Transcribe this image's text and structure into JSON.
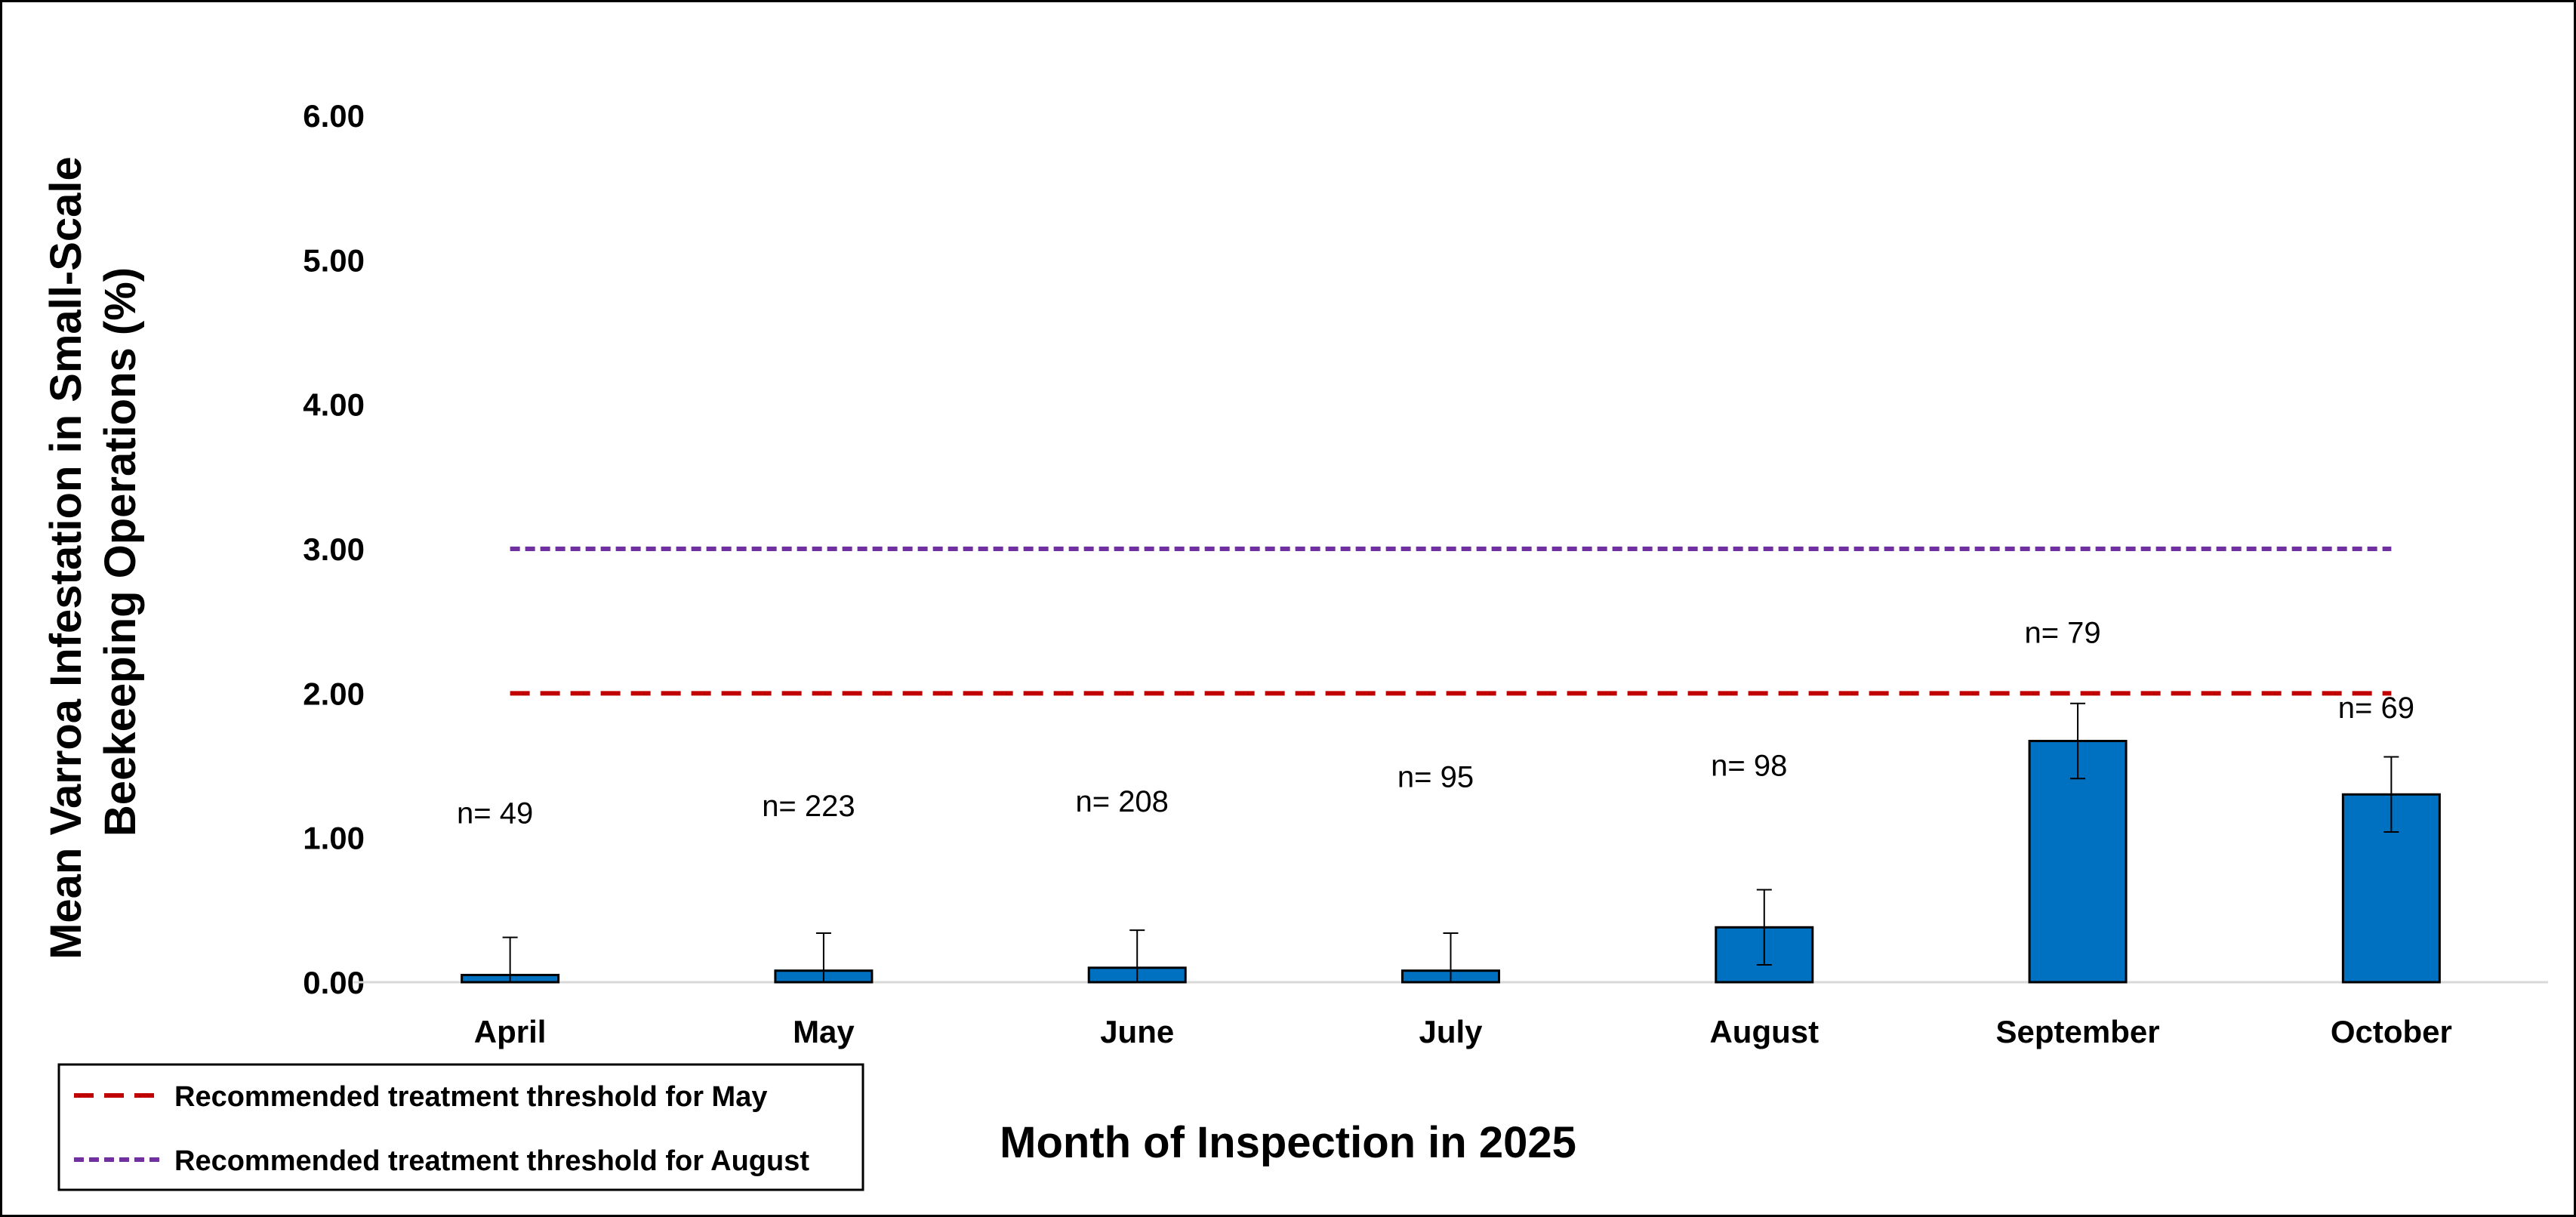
{
  "chart_data": {
    "type": "bar",
    "categories": [
      "April",
      "May",
      "June",
      "July",
      "August",
      "September",
      "October"
    ],
    "values": [
      0.05,
      0.08,
      0.1,
      0.08,
      0.38,
      1.67,
      1.3
    ],
    "error": [
      0.26,
      0.26,
      0.26,
      0.26,
      0.26,
      0.26,
      0.26
    ],
    "annotations": [
      "n= 49",
      "n= 223",
      "n= 208",
      "n= 95",
      "n= 98",
      "n= 79",
      "n= 69"
    ],
    "annotation_y": [
      1.1,
      1.15,
      1.18,
      1.35,
      1.43,
      2.35,
      1.83
    ],
    "ylabel_lines": [
      "Mean Varroa Infestation in Small-Scale",
      "Beekeeping Operations (%)"
    ],
    "xlabel": "Month of Inspection in 2025",
    "ylim": [
      0,
      6
    ],
    "yticks": [
      "0.00",
      "1.00",
      "2.00",
      "3.00",
      "4.00",
      "5.00",
      "6.00"
    ],
    "grid": false,
    "bar_color": "#0070C0",
    "thresholds": [
      {
        "name": "Recommended treatment threshold for May",
        "value": 2.0,
        "color": "#C00000",
        "style": "dashed"
      },
      {
        "name": "Recommended treatment threshold for August",
        "value": 3.0,
        "color": "#7030A0",
        "style": "short-dashed"
      }
    ],
    "legend_position": "bottom-left"
  }
}
